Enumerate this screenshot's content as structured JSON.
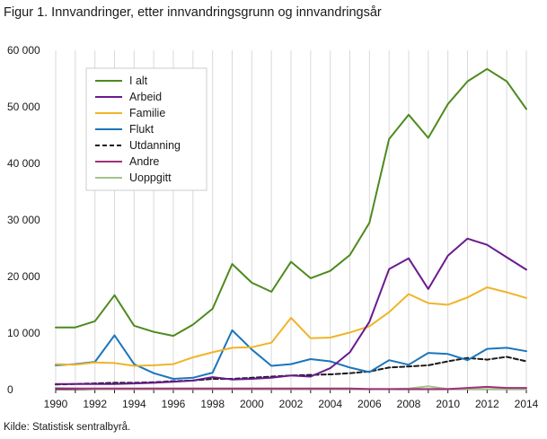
{
  "title": "Figur 1.  Innvandringer, etter innvandringsgrunn og innvandringsår",
  "source": "Kilde: Statistisk sentralbyrå.",
  "chart_data": {
    "type": "line",
    "x": [
      1990,
      1991,
      1992,
      1993,
      1994,
      1995,
      1996,
      1997,
      1998,
      1999,
      2000,
      2001,
      2002,
      2003,
      2004,
      2005,
      2006,
      2007,
      2008,
      2009,
      2010,
      2011,
      2012,
      2013,
      2014
    ],
    "x_tick_labels": [
      "1990",
      "1992",
      "1994",
      "1996",
      "1998",
      "2000",
      "2002",
      "2004",
      "2006",
      "2008",
      "2010",
      "2012",
      "2014"
    ],
    "y_tick_labels": [
      "0",
      "10 000",
      "20 000",
      "30 000",
      "40 000",
      "50 000",
      "60 000"
    ],
    "ylim": [
      0,
      60000
    ],
    "xlim": [
      1990,
      2014
    ],
    "grid": "vertical",
    "legend_position": "top-left",
    "series": [
      {
        "name": "I alt",
        "color": "#4d8a1f",
        "dashed": false,
        "values": [
          11000,
          11000,
          12100,
          16700,
          11300,
          10200,
          9500,
          11500,
          14300,
          22200,
          18900,
          17300,
          22600,
          19700,
          21000,
          23800,
          29500,
          44300,
          48600,
          44500,
          50500,
          54500,
          56700,
          54500,
          49600
        ]
      },
      {
        "name": "Arbeid",
        "color": "#6a1a8f",
        "dashed": false,
        "values": [
          1000,
          1000,
          1000,
          1000,
          1100,
          1200,
          1400,
          1600,
          2200,
          1800,
          1900,
          2100,
          2500,
          2300,
          3800,
          6600,
          12000,
          21300,
          23200,
          17800,
          23700,
          26700,
          25600,
          23400,
          21200
        ]
      },
      {
        "name": "Familie",
        "color": "#f0b429",
        "dashed": false,
        "values": [
          4500,
          4400,
          4800,
          4700,
          4200,
          4300,
          4500,
          5700,
          6600,
          7400,
          7500,
          8300,
          12700,
          9100,
          9200,
          10100,
          11200,
          13700,
          16900,
          15300,
          15000,
          16300,
          18100,
          17200,
          16200
        ]
      },
      {
        "name": "Flukt",
        "color": "#1b75bc",
        "dashed": false,
        "values": [
          4300,
          4500,
          4900,
          9600,
          4500,
          2900,
          1900,
          2100,
          3000,
          10500,
          7100,
          4200,
          4500,
          5400,
          5000,
          3900,
          3100,
          5200,
          4400,
          6500,
          6300,
          5200,
          7200,
          7400,
          6800
        ]
      },
      {
        "name": "Utdanning",
        "color": "#1a1a1a",
        "dashed": true,
        "values": [
          900,
          1000,
          1100,
          1200,
          1200,
          1300,
          1500,
          1600,
          1900,
          1900,
          2100,
          2300,
          2500,
          2600,
          2700,
          2900,
          3200,
          3900,
          4100,
          4300,
          5000,
          5600,
          5300,
          5800,
          5000
        ]
      },
      {
        "name": "Andre",
        "color": "#a0307a",
        "dashed": false,
        "values": [
          200,
          200,
          200,
          200,
          200,
          200,
          200,
          200,
          200,
          200,
          200,
          200,
          200,
          200,
          200,
          200,
          100,
          100,
          100,
          100,
          100,
          300,
          500,
          300,
          300
        ]
      },
      {
        "name": "Uoppgitt",
        "color": "#a3c48a",
        "dashed": false,
        "values": [
          300,
          200,
          100,
          100,
          100,
          100,
          100,
          100,
          100,
          100,
          100,
          100,
          100,
          100,
          100,
          100,
          100,
          100,
          200,
          600,
          100,
          100,
          100,
          100,
          100
        ]
      }
    ]
  }
}
